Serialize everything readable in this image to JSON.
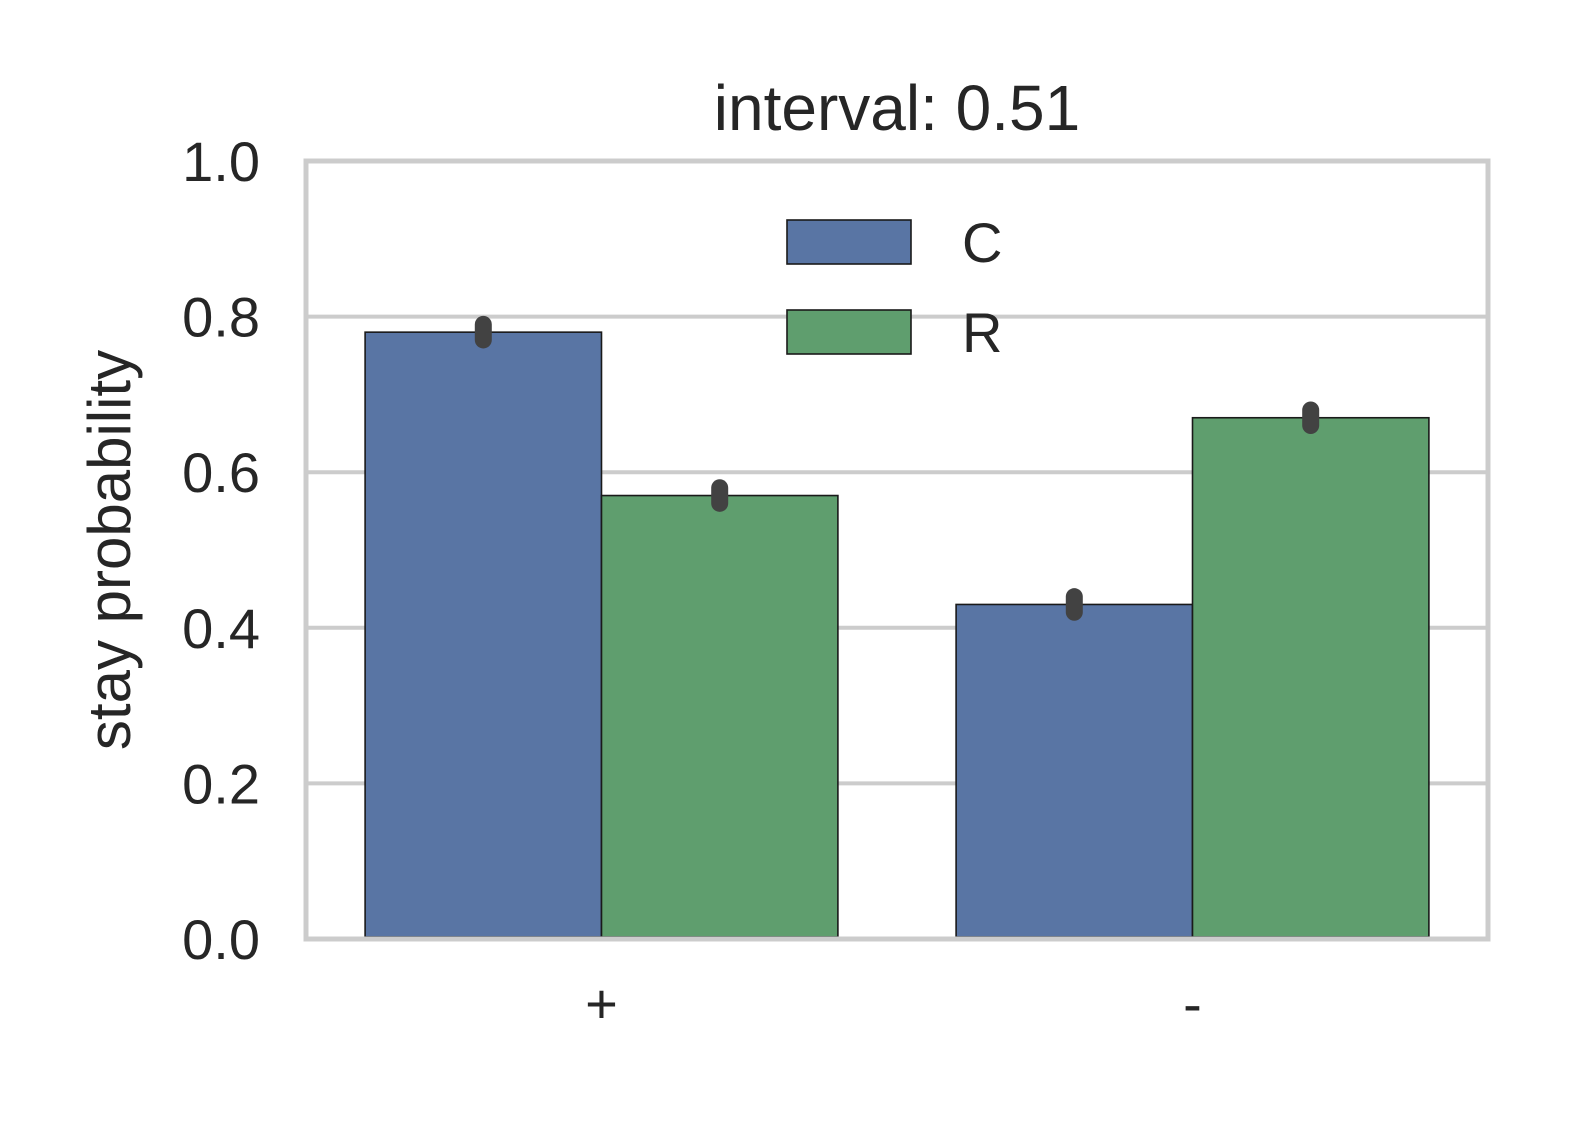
{
  "chart_data": {
    "type": "bar",
    "title": "interval: 0.51",
    "xlabel": "",
    "ylabel": "stay probability",
    "categories": [
      "+",
      "-"
    ],
    "ylim": [
      0.0,
      1.0
    ],
    "yticks": [
      "0.0",
      "0.2",
      "0.4",
      "0.6",
      "0.8",
      "1.0"
    ],
    "grid": true,
    "legend_position": "top-center",
    "series": [
      {
        "name": "C",
        "color": "#5975a4",
        "values": [
          0.78,
          0.43
        ],
        "error": [
          0.01,
          0.01
        ]
      },
      {
        "name": "R",
        "color": "#5f9e6e",
        "values": [
          0.57,
          0.67
        ],
        "error": [
          0.01,
          0.01
        ]
      }
    ]
  }
}
